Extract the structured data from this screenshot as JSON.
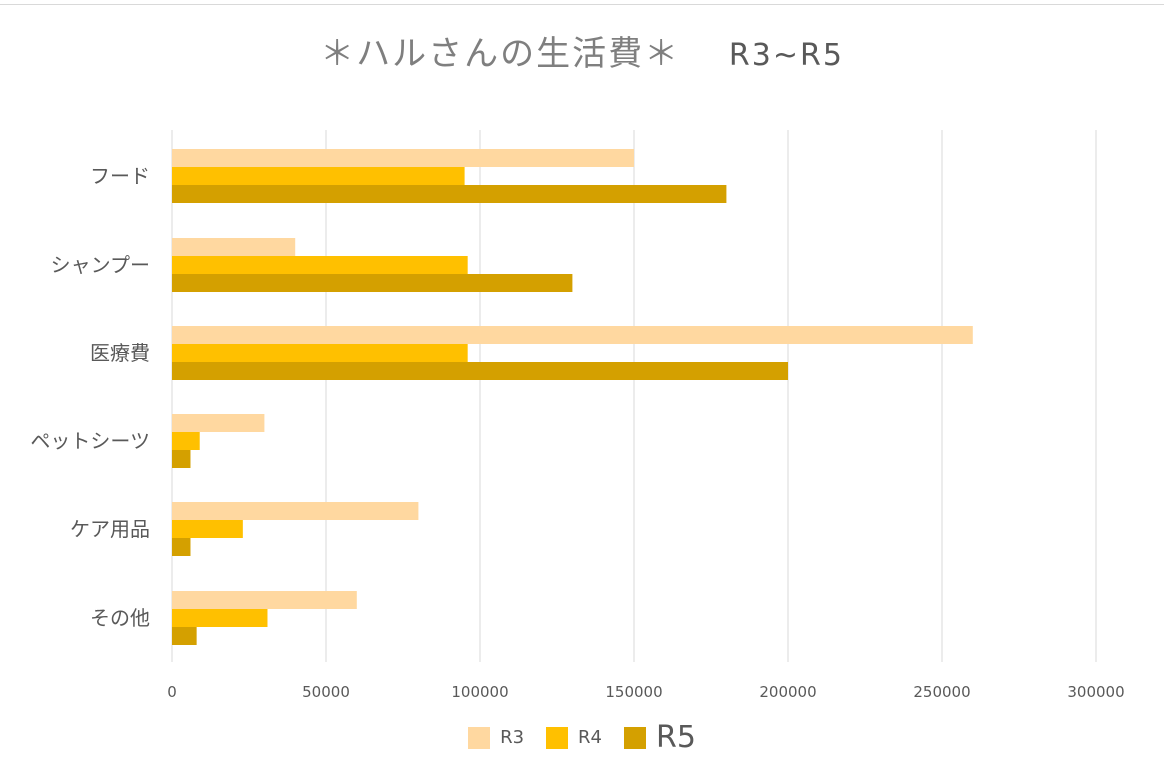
{
  "title": {
    "main": "＊ハルさんの生活費＊",
    "sub": "R3~R5"
  },
  "colors": {
    "R3": "#ffd8a0",
    "R4": "#ffc000",
    "R5": "#d4a000",
    "grid": "#d9d9d9",
    "text": "#595959"
  },
  "chart_data": {
    "type": "bar",
    "orientation": "horizontal",
    "title": "＊ハルさんの生活費＊　R3~R5",
    "categories": [
      "フード",
      "シャンプー",
      "医療費",
      "ペットシーツ",
      "ケア用品",
      "その他"
    ],
    "series": [
      {
        "name": "R3",
        "values": [
          150000,
          40000,
          260000,
          30000,
          80000,
          60000
        ]
      },
      {
        "name": "R4",
        "values": [
          95000,
          96000,
          96000,
          9000,
          23000,
          31000
        ]
      },
      {
        "name": "R5",
        "values": [
          180000,
          130000,
          200000,
          6000,
          6000,
          8000
        ]
      }
    ],
    "xlim": [
      0,
      300000
    ],
    "xticks": [
      "0",
      "50000",
      "100000",
      "150000",
      "200000",
      "250000",
      "300000"
    ],
    "xlabel": "",
    "ylabel": "",
    "grid": true,
    "legend_position": "bottom"
  },
  "legend": [
    {
      "label": "R3",
      "size": "normal"
    },
    {
      "label": "R4",
      "size": "normal"
    },
    {
      "label": "R5",
      "size": "big"
    }
  ]
}
